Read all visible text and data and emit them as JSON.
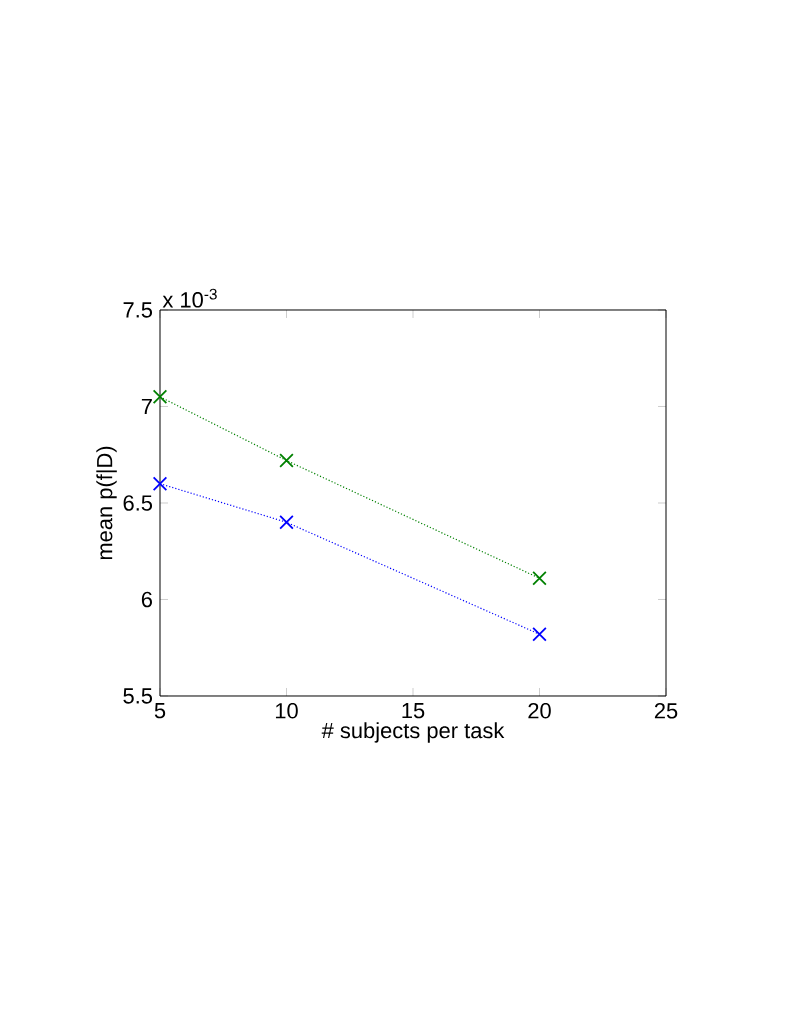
{
  "chart_data": {
    "type": "line",
    "xlabel": "# subjects per task",
    "ylabel": "mean p(f|D)",
    "annotations": [
      "x 10$^{-3}$"
    ],
    "x": [
      5,
      10,
      20
    ],
    "series": [
      {
        "color": "#008000",
        "values": [
          7.05,
          6.72,
          6.11
        ]
      },
      {
        "color": "#0000ff",
        "values": [
          6.6,
          6.4,
          5.82
        ]
      }
    ],
    "xlim": [
      5,
      25
    ],
    "xticks": [
      5,
      10,
      15,
      20,
      25
    ],
    "ylim": [
      5.5,
      7.5
    ],
    "yticks": [
      5.5,
      6,
      6.5,
      7,
      7.5
    ],
    "marker": "cross",
    "line_style": "dotted",
    "grid": false
  }
}
